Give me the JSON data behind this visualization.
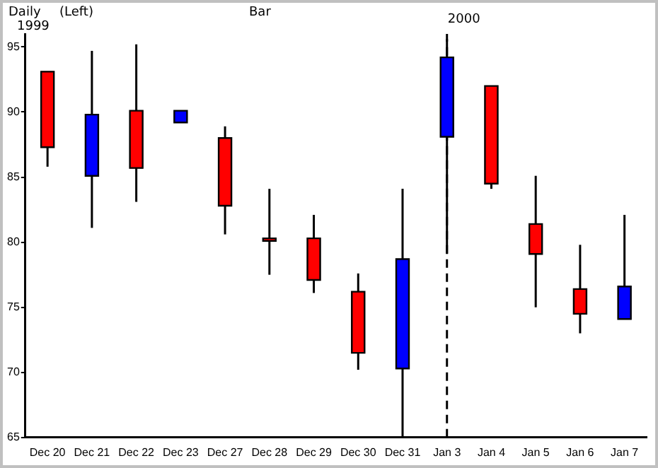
{
  "chart_data": {
    "type": "candlestick",
    "categories": [
      "Dec 20",
      "Dec 21",
      "Dec 22",
      "Dec 23",
      "Dec 27",
      "Dec 28",
      "Dec 29",
      "Dec 30",
      "Dec 31",
      "Jan 3",
      "Jan 4",
      "Jan 5",
      "Jan 6",
      "Jan 7"
    ],
    "ohlc": [
      [
        93.1,
        93.1,
        85.8,
        87.3
      ],
      [
        85.1,
        94.7,
        81.1,
        89.8
      ],
      [
        90.1,
        95.2,
        83.1,
        85.7
      ],
      [
        89.2,
        90.1,
        89.2,
        90.1
      ],
      [
        88.0,
        88.9,
        80.6,
        82.8
      ],
      [
        80.3,
        84.1,
        77.5,
        80.1
      ],
      [
        80.3,
        82.1,
        76.1,
        77.1
      ],
      [
        76.2,
        77.6,
        70.2,
        71.5
      ],
      [
        70.3,
        84.1,
        65.1,
        78.7
      ],
      [
        88.1,
        95.6,
        79.1,
        94.2
      ],
      [
        92.0,
        92.0,
        84.1,
        84.5
      ],
      [
        81.4,
        85.1,
        75.0,
        79.1
      ],
      [
        76.4,
        79.8,
        73.0,
        74.5
      ],
      [
        74.1,
        82.1,
        74.1,
        76.6
      ]
    ],
    "colors": [
      "#ff0000",
      "#0000ff",
      "#ff0000",
      "#0000ff",
      "#ff0000",
      "#ff0000",
      "#ff0000",
      "#ff0000",
      "#0000ff",
      "#0000ff",
      "#ff0000",
      "#ff0000",
      "#ff0000",
      "#0000ff"
    ],
    "ylim": [
      65,
      96
    ],
    "yticks": [
      65,
      70,
      75,
      80,
      85,
      90,
      95
    ],
    "grid": false,
    "legend": false,
    "ref_lines": [
      {
        "axis": "x",
        "value": "Jan 3",
        "label": "2000",
        "line_style": "dashed",
        "color": "#000000"
      }
    ],
    "annotations": [
      "Daily",
      "(Left)",
      "Bar",
      "1999"
    ]
  }
}
